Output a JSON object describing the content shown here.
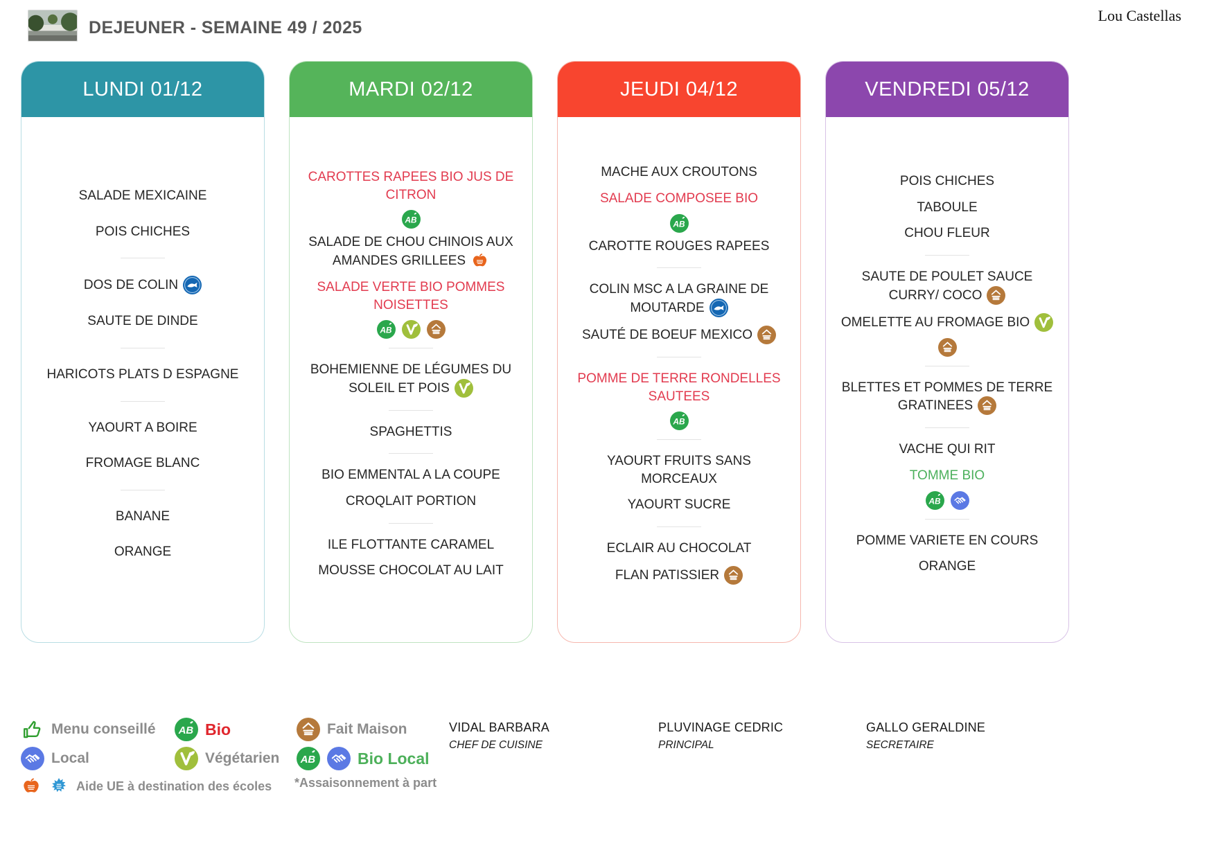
{
  "header": {
    "title": "DEJEUNER - SEMAINE 49 / 2025",
    "site": "Lou Castellas"
  },
  "columns": [
    {
      "day": "LUNDI 01/12",
      "color": "#2d95a6",
      "border": "#b8dde4",
      "items": [
        {
          "type": "dish",
          "text": "SALADE MEXICAINE"
        },
        {
          "type": "dish",
          "text": "POIS CHICHES"
        },
        {
          "type": "divider"
        },
        {
          "type": "dish",
          "text": "DOS DE COLIN",
          "icons_inline": [
            "msc"
          ]
        },
        {
          "type": "dish",
          "text": "SAUTE DE DINDE"
        },
        {
          "type": "divider"
        },
        {
          "type": "dish",
          "text": "HARICOTS PLATS D ESPAGNE"
        },
        {
          "type": "divider"
        },
        {
          "type": "dish",
          "text": "YAOURT A BOIRE"
        },
        {
          "type": "dish",
          "text": "FROMAGE BLANC"
        },
        {
          "type": "divider"
        },
        {
          "type": "dish",
          "text": "BANANE"
        },
        {
          "type": "dish",
          "text": "ORANGE"
        }
      ]
    },
    {
      "day": "MARDI 02/12",
      "color": "#55b45a",
      "border": "#bfe3c0",
      "items": [
        {
          "type": "dish",
          "text": "CAROTTES RAPEES BIO JUS DE CITRON",
          "style": "red",
          "icons_below": [
            "bio"
          ]
        },
        {
          "type": "dish",
          "text": "SALADE DE CHOU CHINOIS AUX AMANDES GRILLEES",
          "icons_inline": [
            "ue-fruit"
          ]
        },
        {
          "type": "dish",
          "text": "SALADE VERTE BIO POMMES NOISETTES",
          "style": "red",
          "icons_below": [
            "bio",
            "vegetarien",
            "fait-maison"
          ]
        },
        {
          "type": "divider"
        },
        {
          "type": "dish",
          "text": "BOHEMIENNE DE LÉGUMES DU SOLEIL ET POIS",
          "icons_inline": [
            "vegetarien"
          ]
        },
        {
          "type": "divider"
        },
        {
          "type": "dish",
          "text": "SPAGHETTIS"
        },
        {
          "type": "divider"
        },
        {
          "type": "dish",
          "text": "BIO EMMENTAL A LA COUPE"
        },
        {
          "type": "dish",
          "text": "CROQLAIT PORTION"
        },
        {
          "type": "divider"
        },
        {
          "type": "dish",
          "text": "ILE FLOTTANTE CARAMEL"
        },
        {
          "type": "dish",
          "text": "MOUSSE CHOCOLAT AU LAIT"
        }
      ]
    },
    {
      "day": "JEUDI 04/12",
      "color": "#f8452f",
      "border": "#f6b7ae",
      "items": [
        {
          "type": "dish",
          "text": "MACHE AUX CROUTONS"
        },
        {
          "type": "dish",
          "text": "SALADE COMPOSEE BIO",
          "style": "red",
          "icons_below": [
            "bio"
          ]
        },
        {
          "type": "dish",
          "text": "CAROTTE ROUGES RAPEES"
        },
        {
          "type": "divider"
        },
        {
          "type": "dish",
          "text": "COLIN MSC A LA GRAINE DE MOUTARDE",
          "icons_inline": [
            "msc"
          ]
        },
        {
          "type": "dish",
          "text": "SAUTÉ DE BOEUF MEXICO",
          "icons_inline": [
            "fait-maison"
          ]
        },
        {
          "type": "divider"
        },
        {
          "type": "dish",
          "text": "POMME DE TERRE RONDELLES SAUTEES",
          "style": "red",
          "icons_below": [
            "bio"
          ]
        },
        {
          "type": "divider"
        },
        {
          "type": "dish",
          "text": "YAOURT FRUITS SANS MORCEAUX"
        },
        {
          "type": "dish",
          "text": "YAOURT SUCRE"
        },
        {
          "type": "divider"
        },
        {
          "type": "dish",
          "text": "ECLAIR AU CHOCOLAT"
        },
        {
          "type": "dish",
          "text": "FLAN PATISSIER",
          "icons_inline": [
            "fait-maison"
          ]
        }
      ]
    },
    {
      "day": "VENDREDI 05/12",
      "color": "#8c47ad",
      "border": "#d8c2e6",
      "items": [
        {
          "type": "dish",
          "text": "POIS CHICHES"
        },
        {
          "type": "dish",
          "text": "TABOULE"
        },
        {
          "type": "dish",
          "text": "CHOU FLEUR"
        },
        {
          "type": "divider"
        },
        {
          "type": "dish",
          "text": "SAUTE DE POULET SAUCE CURRY/ COCO",
          "icons_inline": [
            "fait-maison"
          ]
        },
        {
          "type": "dish",
          "text": "OMELETTE AU FROMAGE BIO",
          "icons_inline": [
            "vegetarien"
          ],
          "icons_below": [
            "fait-maison"
          ]
        },
        {
          "type": "divider"
        },
        {
          "type": "dish",
          "text": "BLETTES ET POMMES DE TERRE GRATINEES",
          "icons_inline": [
            "fait-maison"
          ]
        },
        {
          "type": "divider"
        },
        {
          "type": "dish",
          "text": "VACHE QUI RIT"
        },
        {
          "type": "dish",
          "text": "TOMME BIO",
          "style": "green",
          "icons_below": [
            "bio",
            "local"
          ]
        },
        {
          "type": "divider"
        },
        {
          "type": "dish",
          "text": "POMME VARIETE EN COURS"
        },
        {
          "type": "dish",
          "text": "ORANGE"
        }
      ]
    }
  ],
  "legend": {
    "menu_conseille": "Menu conseillé",
    "bio": "Bio",
    "local": "Local",
    "vegetarien": "Végétarien",
    "fait_maison": "Fait Maison",
    "bio_local": "Bio Local",
    "aide_ue": "Aide UE à destination des écoles",
    "footnote": "*Assaisonnement à part"
  },
  "staff": [
    {
      "name": "VIDAL BARBARA",
      "role": "CHEF DE CUISINE"
    },
    {
      "name": "PLUVINAGE CEDRIC",
      "role": "PRINCIPAL"
    },
    {
      "name": "GALLO GERALDINE",
      "role": "SECRETAIRE"
    }
  ],
  "icon_colors": {
    "bio": "#2aa74c",
    "vegetarien": "#a0bf3c",
    "fait_maison": "#b5793b",
    "msc": "#1467b3",
    "local": "#5b79e4",
    "menu_conseille": "#2f9e2f",
    "ue_fruit": "#e8651d",
    "ue_milk": "#2f97d4"
  }
}
